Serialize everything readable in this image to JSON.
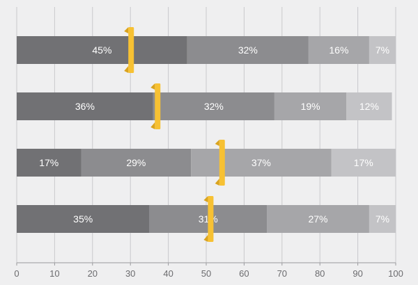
{
  "chart_data": {
    "type": "bar",
    "orientation": "horizontal",
    "stacked": true,
    "title": "",
    "xlabel": "",
    "ylabel": "",
    "xlim": [
      0,
      100
    ],
    "x_ticks": [
      0,
      10,
      20,
      30,
      40,
      50,
      60,
      70,
      80,
      90,
      100
    ],
    "grid": true,
    "legend": "none",
    "segment_colors": [
      "#717174",
      "#8c8c8f",
      "#a6a6a9",
      "#c3c3c6"
    ],
    "marker_color": "#f7c133",
    "rows": [
      {
        "values": [
          45,
          32,
          16,
          7
        ],
        "labels": [
          "45%",
          "32%",
          "16%",
          "7%"
        ],
        "marker": 30
      },
      {
        "values": [
          36,
          32,
          19,
          12
        ],
        "labels": [
          "36%",
          "32%",
          "19%",
          "12%"
        ],
        "marker": 37
      },
      {
        "values": [
          17,
          29,
          37,
          17
        ],
        "labels": [
          "17%",
          "29%",
          "37%",
          "17%"
        ],
        "marker": 54
      },
      {
        "values": [
          35,
          31,
          27,
          7
        ],
        "labels": [
          "35%",
          "31%",
          "27%",
          "7%"
        ],
        "marker": 51
      }
    ]
  }
}
